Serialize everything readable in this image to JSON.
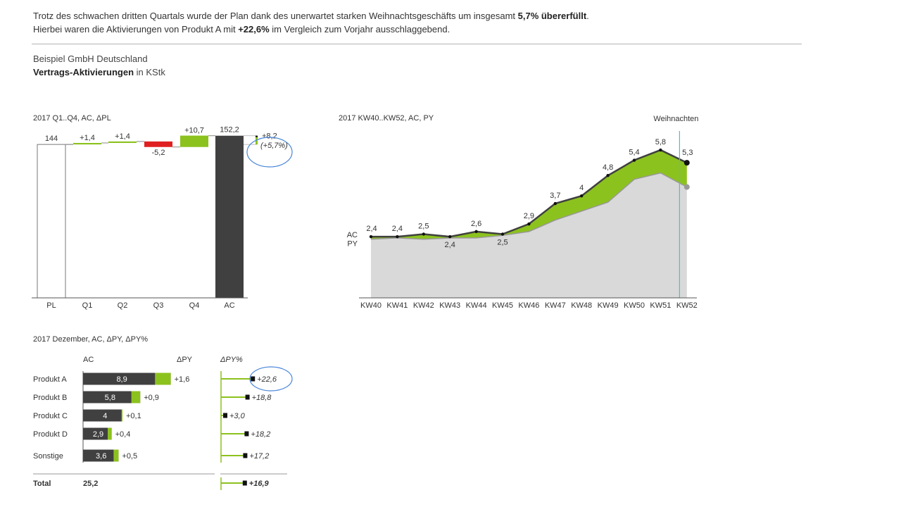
{
  "headline": {
    "line1_pre": "Trotz des schwachen dritten Quartals wurde der Plan dank des unerwartet starken Weihnachtsgeschäfts um insgesamt ",
    "line1_bold": "5,7% übererfüllt",
    "line1_post": ".",
    "line2_pre": "Hierbei waren die Aktivierungen von Produkt A mit ",
    "line2_bold": "+22,6%",
    "line2_post": " im Vergleich zum Vorjahr ausschlaggebend."
  },
  "company": "Beispiel GmbH Deutschland",
  "measure": {
    "bold": "Vertrags-Aktivierungen",
    "unit": " in KStk"
  },
  "colors": {
    "ac": "#404040",
    "pos": "#8cc21e",
    "neg": "#e02020",
    "py": "#d9d9d9",
    "highlight": "#4a86d9",
    "marker": "#5ab4d8"
  },
  "chart_data": [
    {
      "type": "bar",
      "subtype": "waterfall",
      "title": "2017 Q1..Q4, AC, ΔPL",
      "categories": [
        "PL",
        "Q1",
        "Q2",
        "Q3",
        "Q4",
        "AC"
      ],
      "plan": 144,
      "deltas": [
        1.4,
        1.4,
        -5.2,
        10.7
      ],
      "actual": 152.2,
      "labels": [
        "144",
        "+1,4",
        "+1,4",
        "-5,2",
        "+10,7",
        "152,2"
      ],
      "variance": {
        "abs_label": "+8,2",
        "pct_label": "(+5,7%)",
        "value": 8.2,
        "highlighted": true
      }
    },
    {
      "type": "area",
      "title": "2017 KW40..KW52, AC, PY",
      "x": [
        "KW40",
        "KW41",
        "KW42",
        "KW43",
        "KW44",
        "KW45",
        "KW46",
        "KW47",
        "KW48",
        "KW49",
        "KW50",
        "KW51",
        "KW52"
      ],
      "series": [
        {
          "name": "AC",
          "values": [
            2.4,
            2.4,
            2.5,
            2.4,
            2.6,
            2.5,
            2.9,
            3.7,
            4.0,
            4.8,
            5.4,
            5.8,
            5.3
          ],
          "labels": [
            "2,4",
            "2,4",
            "2,5",
            "2,4",
            "2,6",
            "2,5",
            "2,9",
            "3,7",
            "4",
            "4,8",
            "5,4",
            "5,8",
            "5,3"
          ]
        },
        {
          "name": "PY",
          "values": [
            2.3,
            2.35,
            2.3,
            2.35,
            2.35,
            2.45,
            2.6,
            3.05,
            3.4,
            3.75,
            4.65,
            4.9,
            4.35
          ]
        }
      ],
      "annotation": {
        "label": "Weihnachten",
        "at": "KW52"
      },
      "legend": "left"
    },
    {
      "type": "bar",
      "subtype": "horizontal-with-variance",
      "title": "2017 Dezember, AC, ΔPY, ΔPY%",
      "headers": {
        "ac": "AC",
        "dpy": "ΔPY",
        "dpy_pct": "ΔPY%"
      },
      "categories": [
        "Produkt A",
        "Produkt B",
        "Produkt C",
        "Produkt D",
        "Sonstige"
      ],
      "ac": [
        8.9,
        5.8,
        4,
        2.9,
        3.6
      ],
      "ac_labels": [
        "8,9",
        "5,8",
        "4",
        "2,9",
        "3,6"
      ],
      "dpy": [
        1.6,
        0.9,
        0.1,
        0.4,
        0.5
      ],
      "dpy_labels": [
        "+1,6",
        "+0,9",
        "+0,1",
        "+0,4",
        "+0,5"
      ],
      "dpy_pct": [
        22.6,
        18.8,
        3.0,
        18.2,
        17.2
      ],
      "dpy_pct_labels": [
        "+22,6",
        "+18,8",
        "+3,0",
        "+18,2",
        "+17,2"
      ],
      "highlighted_row": "Produkt A",
      "total": {
        "label": "Total",
        "ac_label": "25,2",
        "dpy_pct": 16.9,
        "dpy_pct_label": "+16,9"
      }
    }
  ]
}
